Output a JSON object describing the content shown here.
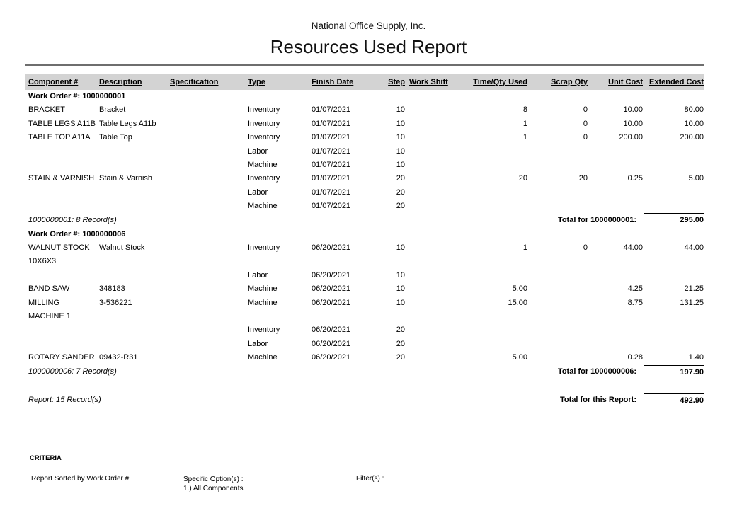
{
  "header": {
    "company": "National Office Supply, Inc.",
    "title": "Resources Used Report"
  },
  "table": {
    "columns": [
      {
        "key": "component",
        "label": "Component #",
        "align": "left"
      },
      {
        "key": "description",
        "label": "Description",
        "align": "left"
      },
      {
        "key": "specification",
        "label": "Specification",
        "align": "left"
      },
      {
        "key": "type",
        "label": "Type",
        "align": "left"
      },
      {
        "key": "finish_date",
        "label": "Finish Date",
        "align": "left"
      },
      {
        "key": "step",
        "label": "Step",
        "align": "right"
      },
      {
        "key": "work_shift",
        "label": "Work Shift",
        "align": "left"
      },
      {
        "key": "time_qty_used",
        "label": "Time/Qty Used",
        "align": "right"
      },
      {
        "key": "scrap_qty",
        "label": "Scrap Qty",
        "align": "right"
      },
      {
        "key": "unit_cost",
        "label": "Unit Cost",
        "align": "right"
      },
      {
        "key": "extended_cost",
        "label": "Extended Cost",
        "align": "right"
      }
    ]
  },
  "work_orders": [
    {
      "label": "Work Order #: 1000000001",
      "rows": [
        {
          "component": "BRACKET",
          "description": "Bracket",
          "specification": "",
          "type": "Inventory",
          "finish_date": "01/07/2021",
          "step": "10",
          "work_shift": "",
          "time_qty_used": "8",
          "scrap_qty": "0",
          "unit_cost": "10.00",
          "extended_cost": "80.00"
        },
        {
          "component": "TABLE LEGS A11B",
          "description": "Table Legs A11b",
          "specification": "",
          "type": "Inventory",
          "finish_date": "01/07/2021",
          "step": "10",
          "work_shift": "",
          "time_qty_used": "1",
          "scrap_qty": "0",
          "unit_cost": "10.00",
          "extended_cost": "10.00"
        },
        {
          "component": "TABLE TOP A11A",
          "description": "Table Top",
          "specification": "",
          "type": "Inventory",
          "finish_date": "01/07/2021",
          "step": "10",
          "work_shift": "",
          "time_qty_used": "1",
          "scrap_qty": "0",
          "unit_cost": "200.00",
          "extended_cost": "200.00"
        },
        {
          "component": "",
          "description": "",
          "specification": "",
          "type": "Labor",
          "finish_date": "01/07/2021",
          "step": "10",
          "work_shift": "",
          "time_qty_used": "",
          "scrap_qty": "",
          "unit_cost": "",
          "extended_cost": ""
        },
        {
          "component": "",
          "description": "",
          "specification": "",
          "type": "Machine",
          "finish_date": "01/07/2021",
          "step": "10",
          "work_shift": "",
          "time_qty_used": "",
          "scrap_qty": "",
          "unit_cost": "",
          "extended_cost": ""
        },
        {
          "component": "STAIN & VARNISH",
          "description": "Stain & Varnish",
          "specification": "",
          "type": "Inventory",
          "finish_date": "01/07/2021",
          "step": "20",
          "work_shift": "",
          "time_qty_used": "20",
          "scrap_qty": "20",
          "unit_cost": "0.25",
          "extended_cost": "5.00"
        },
        {
          "component": "",
          "description": "",
          "specification": "",
          "type": "Labor",
          "finish_date": "01/07/2021",
          "step": "20",
          "work_shift": "",
          "time_qty_used": "",
          "scrap_qty": "",
          "unit_cost": "",
          "extended_cost": ""
        },
        {
          "component": "",
          "description": "",
          "specification": "",
          "type": "Machine",
          "finish_date": "01/07/2021",
          "step": "20",
          "work_shift": "",
          "time_qty_used": "",
          "scrap_qty": "",
          "unit_cost": "",
          "extended_cost": ""
        }
      ],
      "records": "1000000001: 8 Record(s)",
      "total_label": "Total for 1000000001:",
      "total_value": "295.00"
    },
    {
      "label": "Work Order #: 1000000006",
      "rows": [
        {
          "component": "WALNUT STOCK\n10X6X3",
          "description": "Walnut Stock",
          "specification": "",
          "type": "Inventory",
          "finish_date": "06/20/2021",
          "step": "10",
          "work_shift": "",
          "time_qty_used": "1",
          "scrap_qty": "0",
          "unit_cost": "44.00",
          "extended_cost": "44.00"
        },
        {
          "component": "",
          "description": "",
          "specification": "",
          "type": "Labor",
          "finish_date": "06/20/2021",
          "step": "10",
          "work_shift": "",
          "time_qty_used": "",
          "scrap_qty": "",
          "unit_cost": "",
          "extended_cost": ""
        },
        {
          "component": "BAND SAW",
          "description": "348183",
          "specification": "",
          "type": "Machine",
          "finish_date": "06/20/2021",
          "step": "10",
          "work_shift": "",
          "time_qty_used": "5.00",
          "scrap_qty": "",
          "unit_cost": "4.25",
          "extended_cost": "21.25"
        },
        {
          "component": "MILLING\nMACHINE 1",
          "description": "3-536221",
          "specification": "",
          "type": "Machine",
          "finish_date": "06/20/2021",
          "step": "10",
          "work_shift": "",
          "time_qty_used": "15.00",
          "scrap_qty": "",
          "unit_cost": "8.75",
          "extended_cost": "131.25"
        },
        {
          "component": "",
          "description": "",
          "specification": "",
          "type": "Inventory",
          "finish_date": "06/20/2021",
          "step": "20",
          "work_shift": "",
          "time_qty_used": "",
          "scrap_qty": "",
          "unit_cost": "",
          "extended_cost": ""
        },
        {
          "component": "",
          "description": "",
          "specification": "",
          "type": "Labor",
          "finish_date": "06/20/2021",
          "step": "20",
          "work_shift": "",
          "time_qty_used": "",
          "scrap_qty": "",
          "unit_cost": "",
          "extended_cost": ""
        },
        {
          "component": "ROTARY SANDER",
          "description": "09432-R31",
          "specification": "",
          "type": "Machine",
          "finish_date": "06/20/2021",
          "step": "20",
          "work_shift": "",
          "time_qty_used": "5.00",
          "scrap_qty": "",
          "unit_cost": "0.28",
          "extended_cost": "1.40"
        }
      ],
      "records": "1000000006: 7 Record(s)",
      "total_label": "Total for 1000000006:",
      "total_value": "197.90"
    }
  ],
  "report_footer": {
    "records": "Report: 15 Record(s)",
    "total_label": "Total for this Report:",
    "total_value": "492.90"
  },
  "criteria": {
    "heading": "CRITERIA",
    "sorted_by": "Report Sorted by Work Order #",
    "specific_options_label": "Specific Option(s) :",
    "specific_options": [
      "1.) All Components"
    ],
    "filters_label": "Filter(s) :"
  },
  "colors": {
    "header_band": "#d3d3d3",
    "rule_dark": "#6e6e6e",
    "rule_light": "#8a8a8a",
    "text": "#000000"
  }
}
